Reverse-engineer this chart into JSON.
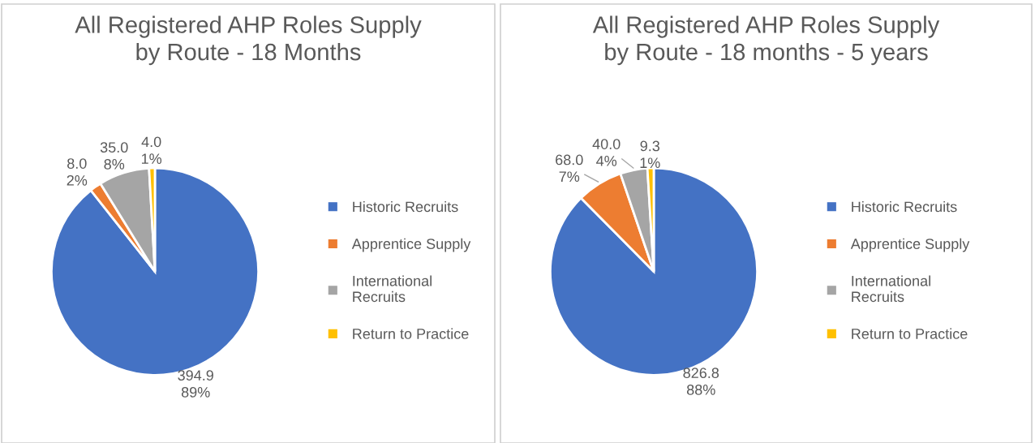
{
  "chart_data": [
    {
      "type": "pie",
      "title": "All Registered AHP Roles Supply\nby Route - 18 Months",
      "categories": [
        "Historic Recruits",
        "Apprentice Supply",
        "International\nRecruits",
        "Return to Practice"
      ],
      "values": [
        394.9,
        8.0,
        35.0,
        4.0
      ],
      "value_labels": [
        "394.9\n89%",
        "8.0\n2%",
        "35.0\n8%",
        "4.0\n1%"
      ],
      "colors": [
        "#4472c4",
        "#ed7d31",
        "#a5a5a5",
        "#ffc000"
      ],
      "legend": "right"
    },
    {
      "type": "pie",
      "title": "All Registered AHP Roles Supply\nby Route - 18 months - 5 years",
      "categories": [
        "Historic Recruits",
        "Apprentice Supply",
        "International\nRecruits",
        "Return to Practice"
      ],
      "values": [
        826.8,
        68.0,
        40.0,
        9.3
      ],
      "value_labels": [
        "826.8\n88%",
        "68.0\n7%",
        "40.0\n4%",
        "9.3\n1%"
      ],
      "colors": [
        "#4472c4",
        "#ed7d31",
        "#a5a5a5",
        "#ffc000"
      ],
      "legend": "right"
    }
  ]
}
